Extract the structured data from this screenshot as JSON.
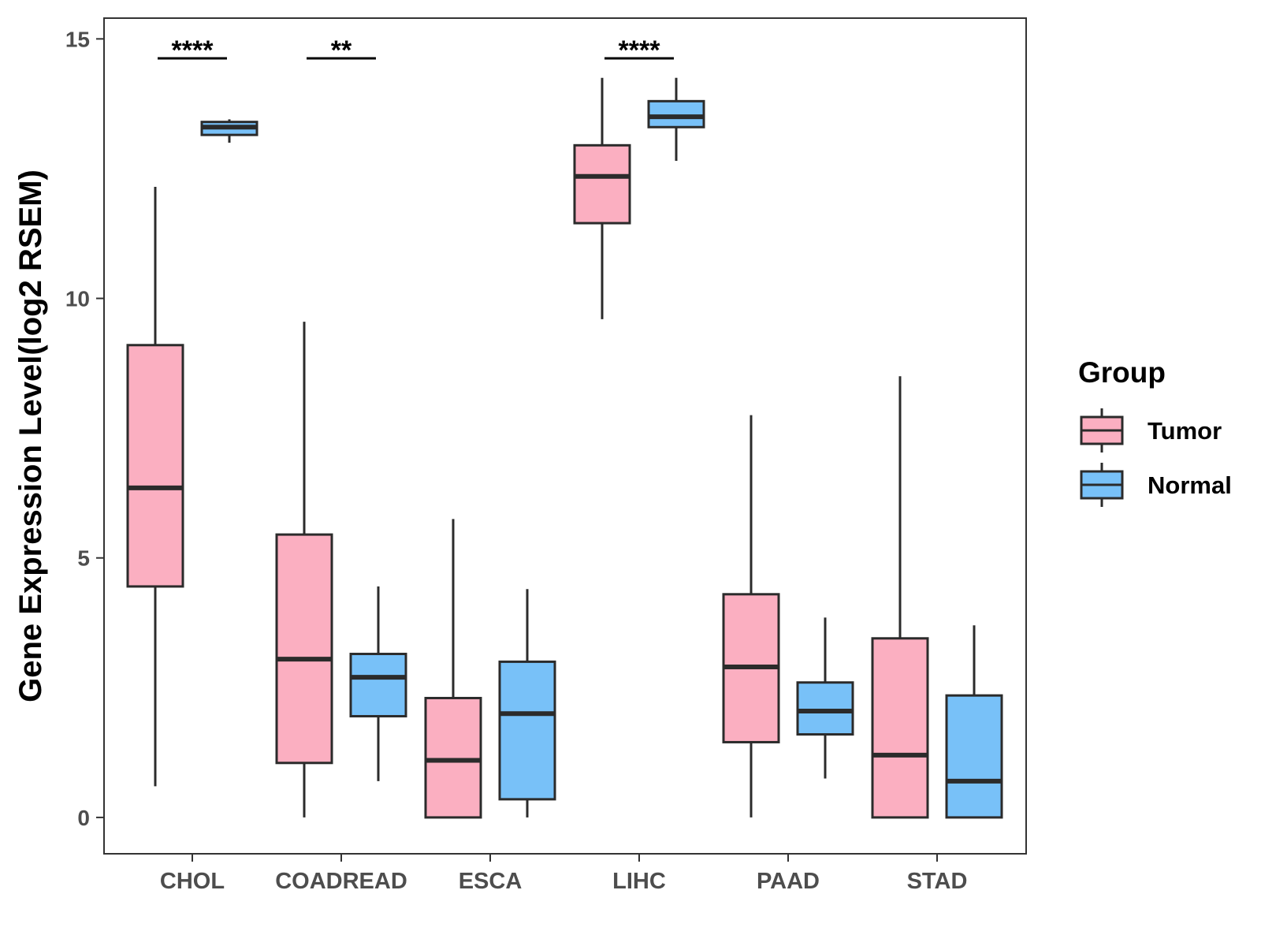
{
  "chart_data": {
    "type": "box",
    "ylabel": "Gene Expression Level(log2 RSEM)",
    "xlabel": "",
    "ylim": [
      -0.7,
      15.4
    ],
    "yticks": [
      0,
      5,
      10,
      15
    ],
    "categories": [
      "CHOL",
      "COADREAD",
      "ESCA",
      "LIHC",
      "PAAD",
      "STAD"
    ],
    "legend": {
      "title": "Group",
      "position": "right",
      "entries": [
        {
          "name": "Tumor",
          "color": "#FBAFC1"
        },
        {
          "name": "Normal",
          "color": "#78C1F8"
        }
      ]
    },
    "series": [
      {
        "name": "Tumor",
        "color": "#FBAFC1",
        "boxes": [
          {
            "min": 0.6,
            "q1": 4.45,
            "median": 6.35,
            "q3": 9.1,
            "max": 12.15
          },
          {
            "min": 0.0,
            "q1": 1.05,
            "median": 3.05,
            "q3": 5.45,
            "max": 9.55
          },
          {
            "min": 0.0,
            "q1": 0.0,
            "median": 1.1,
            "q3": 2.3,
            "max": 5.75
          },
          {
            "min": 9.6,
            "q1": 11.45,
            "median": 12.35,
            "q3": 12.95,
            "max": 14.25
          },
          {
            "min": 0.0,
            "q1": 1.45,
            "median": 2.9,
            "q3": 4.3,
            "max": 7.75
          },
          {
            "min": 0.0,
            "q1": 0.0,
            "median": 1.2,
            "q3": 3.45,
            "max": 8.5
          }
        ]
      },
      {
        "name": "Normal",
        "color": "#78C1F8",
        "boxes": [
          {
            "min": 13.0,
            "q1": 13.15,
            "median": 13.3,
            "q3": 13.4,
            "max": 13.45
          },
          {
            "min": 0.7,
            "q1": 1.95,
            "median": 2.7,
            "q3": 3.15,
            "max": 4.45
          },
          {
            "min": 0.0,
            "q1": 0.35,
            "median": 2.0,
            "q3": 3.0,
            "max": 4.4
          },
          {
            "min": 12.65,
            "q1": 13.3,
            "median": 13.5,
            "q3": 13.8,
            "max": 14.25
          },
          {
            "min": 0.75,
            "q1": 1.6,
            "median": 2.05,
            "q3": 2.6,
            "max": 3.85
          },
          {
            "min": 0.0,
            "q1": 0.0,
            "median": 0.7,
            "q3": 2.35,
            "max": 3.7
          }
        ]
      }
    ],
    "annotations": [
      {
        "category": "CHOL",
        "label": "****"
      },
      {
        "category": "COADREAD",
        "label": "**"
      },
      {
        "category": "LIHC",
        "label": "****"
      }
    ]
  }
}
